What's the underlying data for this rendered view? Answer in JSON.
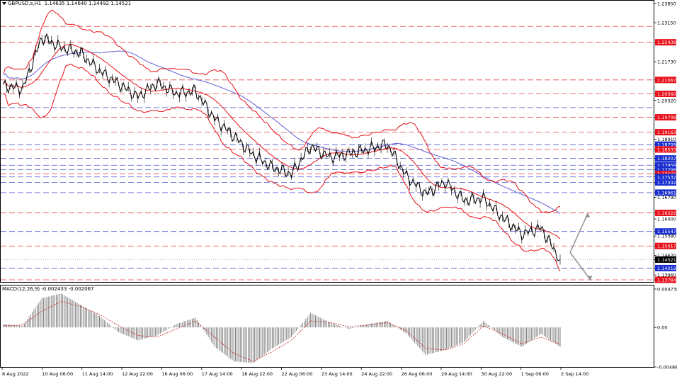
{
  "header": {
    "symbol_label": "GBPUSD.s,H1",
    "ohlc": "1.14635 1.14640 1.14492 1.14521"
  },
  "macd_header": {
    "label": "MACD(12,26,9) -0.002433 -0.002067"
  },
  "colors": {
    "price_line": "#000000",
    "bollinger": "#e8101a",
    "moving_average": "#6060d8",
    "resistance_line": "#e02828",
    "support_line": "#2838c8",
    "red_tag": "#e8101a",
    "blue_tag": "#1a2ed0",
    "black_tag": "#000000",
    "histogram": "#808080",
    "signal": "#c82020",
    "arrow": "#909090"
  },
  "price_axis": {
    "ticks": [
      "1.23850",
      "1.23150",
      "1.22439",
      "1.21730",
      "1.21067",
      "1.20560",
      "1.20320",
      "1.19706",
      "1.19163",
      "1.18910",
      "1.18709",
      "1.18533",
      "1.18207",
      "1.17959",
      "1.17798",
      "1.17641",
      "1.17532",
      "1.17332",
      "1.16961",
      "1.16790",
      "1.16222",
      "1.16000",
      "1.15547",
      "1.15380",
      "1.15017",
      "1.14670",
      "1.14521",
      "1.14212",
      "1.13960",
      "1.13784"
    ],
    "current_price": "1.14521"
  },
  "levels": [
    {
      "price": 1.23017,
      "label": "1.23017",
      "kind": "resistance"
    },
    {
      "price": 1.22439,
      "label": "1.22439",
      "kind": "resistance"
    },
    {
      "price": 1.21067,
      "label": "1.21067",
      "kind": "resistance"
    },
    {
      "price": 1.2056,
      "label": "1.20560",
      "kind": "resistance"
    },
    {
      "price": 1.20059,
      "label": "1.20059",
      "kind": "support"
    },
    {
      "price": 1.19706,
      "label": "1.19706",
      "kind": "resistance"
    },
    {
      "price": 1.19163,
      "label": "1.19163",
      "kind": "resistance"
    },
    {
      "price": 1.18709,
      "label": "1.18709",
      "kind": "support"
    },
    {
      "price": 1.18533,
      "label": "1.18533",
      "kind": "resistance"
    },
    {
      "price": 1.18207,
      "label": "1.18207",
      "kind": "support"
    },
    {
      "price": 1.17959,
      "label": "1.17959",
      "kind": "support"
    },
    {
      "price": 1.17798,
      "label": "1.17798",
      "kind": "support"
    },
    {
      "price": 1.17641,
      "label": "1.17641",
      "kind": "resistance"
    },
    {
      "price": 1.17532,
      "label": "1.17532",
      "kind": "support"
    },
    {
      "price": 1.17332,
      "label": "1.17332",
      "kind": "support"
    },
    {
      "price": 1.16961,
      "label": "1.16961",
      "kind": "support"
    },
    {
      "price": 1.16222,
      "label": "1.16222",
      "kind": "resistance"
    },
    {
      "price": 1.15547,
      "label": "1.15547",
      "kind": "support"
    },
    {
      "price": 1.15017,
      "label": "1.15017",
      "kind": "resistance"
    },
    {
      "price": 1.14212,
      "label": "1.14212",
      "kind": "support"
    },
    {
      "price": 1.13784,
      "label": "1.13784",
      "kind": "resistance"
    }
  ],
  "macd_axis": {
    "ticks": [
      "0.004738",
      "0.00",
      "-0.004889"
    ]
  },
  "time_axis": {
    "labels": [
      "8 Aug 2022",
      "10 Aug 06:00",
      "11 Aug 14:00",
      "12 Aug 22:00",
      "16 Aug 06:00",
      "17 Aug 14:00",
      "18 Aug 22:00",
      "22 Aug 06:00",
      "23 Aug 14:00",
      "24 Aug 22:00",
      "26 Aug 06:00",
      "29 Aug 14:00",
      "30 Aug 22:00",
      "1 Sep 06:00",
      "2 Sep 14:00"
    ]
  },
  "chart_data": {
    "type": "line",
    "symbol": "GBPUSD.s",
    "timeframe": "H1",
    "x_labels": [
      "8 Aug 2022",
      "10 Aug 06:00",
      "11 Aug 14:00",
      "12 Aug 22:00",
      "16 Aug 06:00",
      "17 Aug 14:00",
      "18 Aug 22:00",
      "22 Aug 06:00",
      "23 Aug 14:00",
      "24 Aug 22:00",
      "26 Aug 06:00",
      "29 Aug 14:00",
      "30 Aug 22:00",
      "1 Sep 06:00",
      "2 Sep 14:00"
    ],
    "ylim": [
      1.13784,
      1.2385
    ],
    "price_series": {
      "name": "GBPUSD.s",
      "x": [
        "8 Aug 2022",
        "9 Aug",
        "10 Aug 06:00",
        "10 Aug",
        "11 Aug 14:00",
        "12 Aug",
        "12 Aug 22:00",
        "15 Aug",
        "16 Aug 06:00",
        "16 Aug",
        "17 Aug 14:00",
        "18 Aug",
        "18 Aug 22:00",
        "19 Aug",
        "22 Aug 06:00",
        "22 Aug",
        "23 Aug 14:00",
        "24 Aug",
        "24 Aug 22:00",
        "25 Aug",
        "26 Aug 06:00",
        "26 Aug",
        "29 Aug 14:00",
        "30 Aug",
        "30 Aug 22:00",
        "31 Aug",
        "1 Sep 06:00",
        "1 Sep",
        "2 Sep 14:00",
        "2 Sep"
      ],
      "values": [
        1.2085,
        1.2075,
        1.2262,
        1.2225,
        1.2205,
        1.214,
        1.2092,
        1.2045,
        1.2095,
        1.2058,
        1.2066,
        1.1965,
        1.1902,
        1.1835,
        1.1788,
        1.1765,
        1.1865,
        1.1825,
        1.1838,
        1.1855,
        1.1872,
        1.1755,
        1.1692,
        1.1735,
        1.1668,
        1.1675,
        1.1605,
        1.1545,
        1.1568,
        1.1452
      ]
    },
    "macd": {
      "ylim": [
        -0.004889,
        0.004738
      ],
      "histogram": [
        0.0004,
        0.0002,
        0.0036,
        0.0042,
        0.0028,
        0.0014,
        -0.0006,
        -0.0016,
        -0.001,
        0.0004,
        0.0012,
        -0.0024,
        -0.0042,
        -0.0044,
        -0.0026,
        -0.0012,
        0.0018,
        0.0006,
        -0.0002,
        0.0004,
        0.0008,
        -0.0008,
        -0.0034,
        -0.0028,
        -0.0018,
        0.0008,
        -0.0012,
        -0.0024,
        -0.0008,
        -0.0024
      ],
      "signal": [
        0.0002,
        0.0003,
        0.002,
        0.0032,
        0.0026,
        0.0016,
        0.0002,
        -0.001,
        -0.0012,
        -0.0002,
        0.0008,
        -0.0012,
        -0.0032,
        -0.0042,
        -0.003,
        -0.0016,
        0.0008,
        0.0006,
        0.0001,
        0.0003,
        0.0006,
        -0.0004,
        -0.0026,
        -0.0028,
        -0.002,
        0.0002,
        -0.0008,
        -0.002,
        -0.0012,
        -0.0021
      ]
    }
  }
}
